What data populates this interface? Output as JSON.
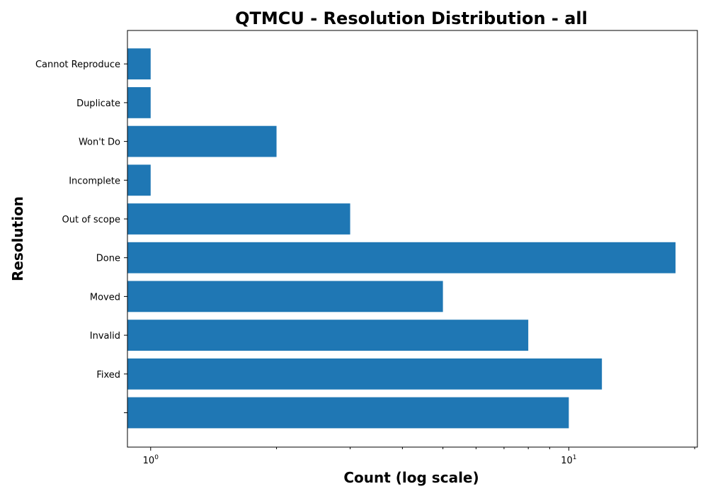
{
  "chart_data": {
    "type": "bar",
    "orientation": "horizontal",
    "title": "QTMCU - Resolution Distribution - all",
    "xlabel": "Count (log scale)",
    "ylabel": "Resolution",
    "x_scale": "log",
    "xlim": [
      0.88,
      20.3
    ],
    "x_ticks": [
      {
        "base": "10",
        "exp": "0",
        "value": 1
      },
      {
        "base": "10",
        "exp": "1",
        "value": 10
      }
    ],
    "categories": [
      "",
      "Fixed",
      "Invalid",
      "Moved",
      "Done",
      "Out of scope",
      "Incomplete",
      "Won't Do",
      "Duplicate",
      "Cannot Reproduce"
    ],
    "values": [
      10,
      12,
      8,
      5,
      18,
      3,
      1,
      2,
      1,
      1
    ],
    "color": "#1f77b4",
    "grid": false,
    "legend": "none"
  }
}
